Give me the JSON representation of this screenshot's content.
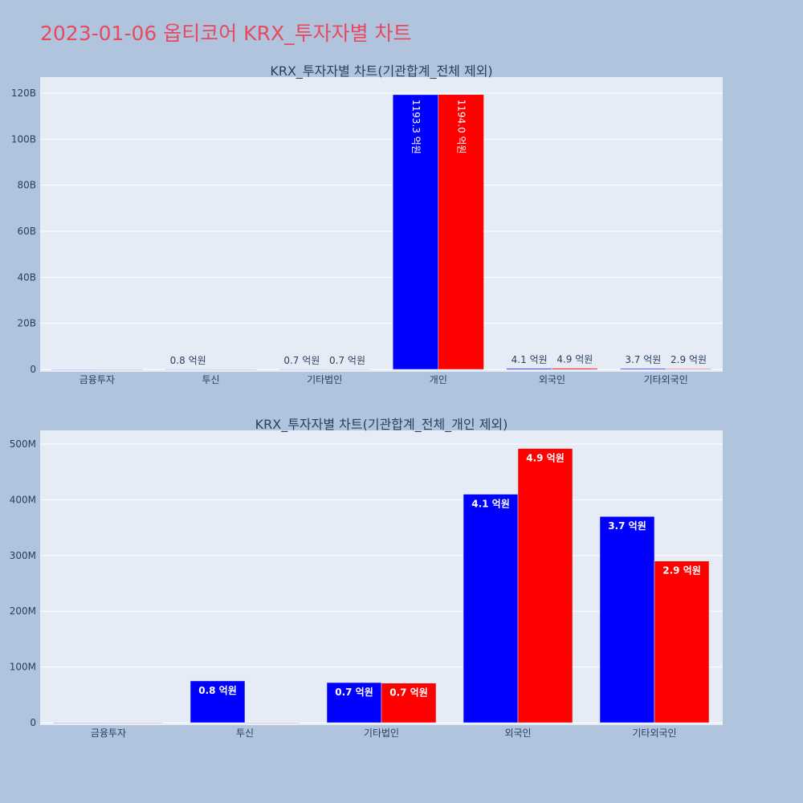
{
  "title": "2023-01-06 옵티코어 KRX_투자자별 차트",
  "colors": {
    "series1": "#0000ff",
    "series2": "#ff0000",
    "plot_bg": "#e5ecf6",
    "page_bg": "#b0c4de",
    "title": "#e8495f"
  },
  "chart_data": [
    {
      "type": "bar",
      "title": "KRX_투자자별 차트(기관합계_전체 제외)",
      "categories": [
        "금융투자",
        "투신",
        "기타법인",
        "개인",
        "외국인",
        "기타외국인"
      ],
      "series": [
        {
          "color": "#0000ff",
          "values": [
            0,
            75000000,
            72000000,
            119330000000,
            410000000,
            370000000
          ],
          "labels": [
            "",
            "0.8 억원",
            "0.7 억원",
            "1193.3 억원",
            "4.1 억원",
            "3.7 억원"
          ]
        },
        {
          "color": "#ff0000",
          "values": [
            0,
            0,
            71000000,
            119400000000,
            492000000,
            290000000
          ],
          "labels": [
            "",
            "",
            "0.7 억원",
            "1194.0 억원",
            "4.9 억원",
            "2.9 억원"
          ]
        }
      ],
      "ylim": [
        0,
        126000000000
      ],
      "yticks": [
        0,
        20000000000,
        40000000000,
        60000000000,
        80000000000,
        100000000000,
        120000000000
      ],
      "yticklabels": [
        "0",
        "20B",
        "40B",
        "60B",
        "80B",
        "100B",
        "120B"
      ],
      "grid": true,
      "legend": "none"
    },
    {
      "type": "bar",
      "title": "KRX_투자자별 차트(기관합계_전체_개인 제외)",
      "categories": [
        "금융투자",
        "투신",
        "기타법인",
        "외국인",
        "기타외국인"
      ],
      "series": [
        {
          "color": "#0000ff",
          "values": [
            0,
            75000000,
            72000000,
            410000000,
            370000000
          ],
          "labels": [
            "",
            "0.8 억원",
            "0.7 억원",
            "4.1 억원",
            "3.7 억원"
          ]
        },
        {
          "color": "#ff0000",
          "values": [
            0,
            0,
            71000000,
            492000000,
            290000000
          ],
          "labels": [
            "",
            "",
            "0.7 억원",
            "4.9 억원",
            "2.9 억원"
          ]
        }
      ],
      "ylim": [
        0,
        525000000
      ],
      "yticks": [
        0,
        100000000,
        200000000,
        300000000,
        400000000,
        500000000
      ],
      "yticklabels": [
        "0",
        "100M",
        "200M",
        "300M",
        "400M",
        "500M"
      ],
      "grid": true,
      "legend": "none"
    }
  ]
}
